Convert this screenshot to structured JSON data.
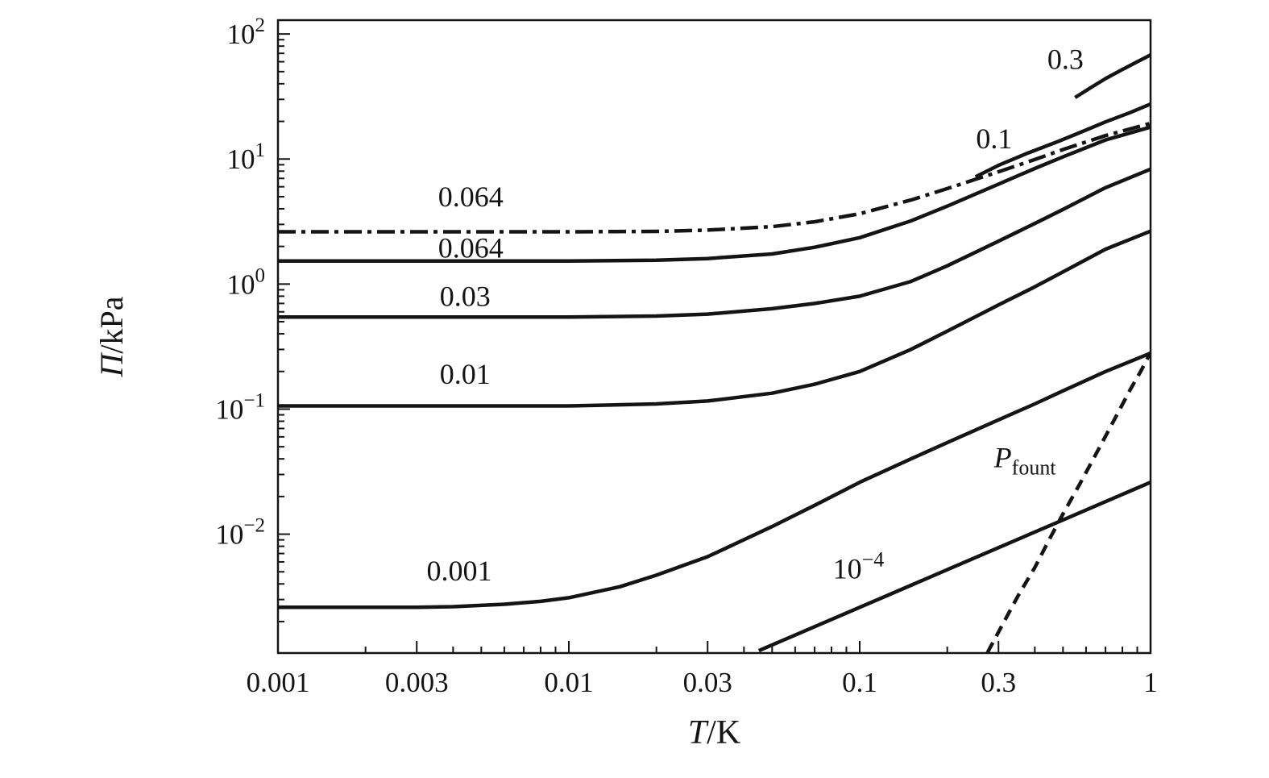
{
  "figure": {
    "background": "#ffffff",
    "ink": "#141414"
  },
  "chart_data": {
    "type": "line",
    "title": "",
    "x_axis": {
      "label_italic": "T",
      "label_rest": "/K",
      "scale": "log",
      "min": 0.001,
      "max": 1,
      "major_ticks": [
        {
          "value": 0.001,
          "label": "0.001"
        },
        {
          "value": 0.003,
          "label": "0.003"
        },
        {
          "value": 0.01,
          "label": "0.01"
        },
        {
          "value": 0.03,
          "label": "0.03"
        },
        {
          "value": 0.1,
          "label": "0.1"
        },
        {
          "value": 0.3,
          "label": "0.3"
        },
        {
          "value": 1,
          "label": "1"
        }
      ]
    },
    "y_axis": {
      "label_italic": "Π",
      "label_rest": "/kPa",
      "scale": "log",
      "min": 0.00112,
      "max": 129,
      "major_ticks": [
        {
          "value": 100,
          "base": "10",
          "exp": "2"
        },
        {
          "value": 10,
          "base": "10",
          "exp": "1"
        },
        {
          "value": 1,
          "base": "10",
          "exp": "0"
        },
        {
          "value": 0.1,
          "base": "10",
          "exp": "−1"
        },
        {
          "value": 0.01,
          "base": "10",
          "exp": "−2"
        }
      ]
    },
    "series": [
      {
        "name": "curve-0.3",
        "label": "0.3",
        "style": "solid",
        "points": [
          [
            0.55,
            31
          ],
          [
            0.62,
            37
          ],
          [
            0.7,
            44
          ],
          [
            0.8,
            52
          ],
          [
            0.9,
            60
          ],
          [
            1.0,
            68
          ]
        ]
      },
      {
        "name": "curve-0.1",
        "label": "0.1",
        "style": "solid",
        "points": [
          [
            0.25,
            7.2
          ],
          [
            0.3,
            8.9
          ],
          [
            0.38,
            11.2
          ],
          [
            0.48,
            13.8
          ],
          [
            0.58,
            16.5
          ],
          [
            0.7,
            19.8
          ],
          [
            0.85,
            23.5
          ],
          [
            1.0,
            27.5
          ]
        ]
      },
      {
        "name": "curve-0.064-dashdot",
        "label": "0.064",
        "style": "dashdot",
        "points": [
          [
            0.001,
            2.62
          ],
          [
            0.003,
            2.62
          ],
          [
            0.006,
            2.62
          ],
          [
            0.01,
            2.62
          ],
          [
            0.02,
            2.64
          ],
          [
            0.03,
            2.7
          ],
          [
            0.05,
            2.88
          ],
          [
            0.07,
            3.15
          ],
          [
            0.1,
            3.65
          ],
          [
            0.15,
            4.7
          ],
          [
            0.2,
            5.8
          ],
          [
            0.3,
            7.9
          ],
          [
            0.4,
            9.9
          ],
          [
            0.5,
            11.9
          ],
          [
            0.7,
            15.4
          ],
          [
            1.0,
            19.3
          ]
        ]
      },
      {
        "name": "curve-0.064-solid",
        "label": "0.064",
        "style": "solid",
        "points": [
          [
            0.001,
            1.53
          ],
          [
            0.003,
            1.53
          ],
          [
            0.006,
            1.53
          ],
          [
            0.01,
            1.53
          ],
          [
            0.02,
            1.55
          ],
          [
            0.03,
            1.6
          ],
          [
            0.05,
            1.74
          ],
          [
            0.07,
            1.97
          ],
          [
            0.1,
            2.35
          ],
          [
            0.15,
            3.2
          ],
          [
            0.2,
            4.2
          ],
          [
            0.3,
            6.3
          ],
          [
            0.4,
            8.4
          ],
          [
            0.5,
            10.4
          ],
          [
            0.7,
            14.2
          ],
          [
            1.0,
            18.0
          ]
        ]
      },
      {
        "name": "curve-0.03",
        "label": "0.03",
        "style": "solid",
        "points": [
          [
            0.001,
            0.545
          ],
          [
            0.003,
            0.545
          ],
          [
            0.006,
            0.545
          ],
          [
            0.01,
            0.545
          ],
          [
            0.02,
            0.555
          ],
          [
            0.03,
            0.575
          ],
          [
            0.05,
            0.635
          ],
          [
            0.07,
            0.7
          ],
          [
            0.1,
            0.8
          ],
          [
            0.15,
            1.05
          ],
          [
            0.2,
            1.4
          ],
          [
            0.3,
            2.2
          ],
          [
            0.4,
            3.05
          ],
          [
            0.5,
            3.95
          ],
          [
            0.7,
            5.9
          ],
          [
            1.0,
            8.3
          ]
        ]
      },
      {
        "name": "curve-0.01",
        "label": "0.01",
        "style": "solid",
        "points": [
          [
            0.001,
            0.106
          ],
          [
            0.003,
            0.106
          ],
          [
            0.006,
            0.106
          ],
          [
            0.01,
            0.106
          ],
          [
            0.02,
            0.11
          ],
          [
            0.03,
            0.116
          ],
          [
            0.05,
            0.134
          ],
          [
            0.07,
            0.158
          ],
          [
            0.1,
            0.2
          ],
          [
            0.15,
            0.3
          ],
          [
            0.2,
            0.42
          ],
          [
            0.3,
            0.68
          ],
          [
            0.4,
            0.95
          ],
          [
            0.5,
            1.25
          ],
          [
            0.7,
            1.9
          ],
          [
            1.0,
            2.65
          ]
        ]
      },
      {
        "name": "curve-0.001",
        "label": "0.001",
        "style": "solid",
        "points": [
          [
            0.001,
            0.0026
          ],
          [
            0.002,
            0.0026
          ],
          [
            0.003,
            0.0026
          ],
          [
            0.004,
            0.00263
          ],
          [
            0.006,
            0.00275
          ],
          [
            0.008,
            0.0029
          ],
          [
            0.01,
            0.0031
          ],
          [
            0.015,
            0.0038
          ],
          [
            0.02,
            0.0047
          ],
          [
            0.03,
            0.0066
          ],
          [
            0.05,
            0.0115
          ],
          [
            0.07,
            0.017
          ],
          [
            0.1,
            0.026
          ],
          [
            0.15,
            0.04
          ],
          [
            0.2,
            0.054
          ],
          [
            0.3,
            0.082
          ],
          [
            0.4,
            0.11
          ],
          [
            0.5,
            0.14
          ],
          [
            0.7,
            0.2
          ],
          [
            1.0,
            0.28
          ]
        ]
      },
      {
        "name": "curve-1e-4",
        "label": "10^-4",
        "style": "solid",
        "points": [
          [
            0.045,
            0.00117
          ],
          [
            0.07,
            0.00182
          ],
          [
            0.1,
            0.0026
          ],
          [
            0.15,
            0.0039
          ],
          [
            0.2,
            0.0052
          ],
          [
            0.3,
            0.0078
          ],
          [
            0.5,
            0.013
          ],
          [
            0.7,
            0.0182
          ],
          [
            1.0,
            0.026
          ]
        ]
      },
      {
        "name": "curve-P-fount",
        "label": "P_fount",
        "style": "dashed",
        "points": [
          [
            0.275,
            0.00113
          ],
          [
            0.31,
            0.0019
          ],
          [
            0.35,
            0.0032
          ],
          [
            0.4,
            0.0054
          ],
          [
            0.45,
            0.0092
          ],
          [
            0.5,
            0.0145
          ],
          [
            0.57,
            0.025
          ],
          [
            0.65,
            0.044
          ],
          [
            0.75,
            0.082
          ],
          [
            0.85,
            0.142
          ],
          [
            0.93,
            0.205
          ],
          [
            1.0,
            0.285
          ]
        ]
      }
    ],
    "annotations": [
      {
        "kind": "plain",
        "text": "0.064",
        "x": 0.0046,
        "y": 5.0,
        "name": "label-0.064-upper"
      },
      {
        "kind": "plain",
        "text": "0.064",
        "x": 0.0046,
        "y": 1.95,
        "name": "label-0.064-lower"
      },
      {
        "kind": "plain",
        "text": "0.03",
        "x": 0.0044,
        "y": 0.8,
        "name": "label-0.03"
      },
      {
        "kind": "plain",
        "text": "0.01",
        "x": 0.0044,
        "y": 0.19,
        "name": "label-0.01"
      },
      {
        "kind": "plain",
        "text": "0.001",
        "x": 0.0042,
        "y": 0.0051,
        "name": "label-0.001"
      },
      {
        "kind": "power",
        "base": "10",
        "exp": "−4",
        "x": 0.099,
        "y": 0.0053,
        "name": "label-1e-4"
      },
      {
        "kind": "subscript",
        "main": "P",
        "sub": "fount",
        "x": 0.37,
        "y": 0.041,
        "name": "label-P-fount"
      },
      {
        "kind": "plain",
        "text": "0.1",
        "x": 0.29,
        "y": 14.5,
        "name": "label-0.1"
      },
      {
        "kind": "plain",
        "text": "0.3",
        "x": 0.51,
        "y": 63,
        "name": "label-0.3"
      }
    ]
  }
}
